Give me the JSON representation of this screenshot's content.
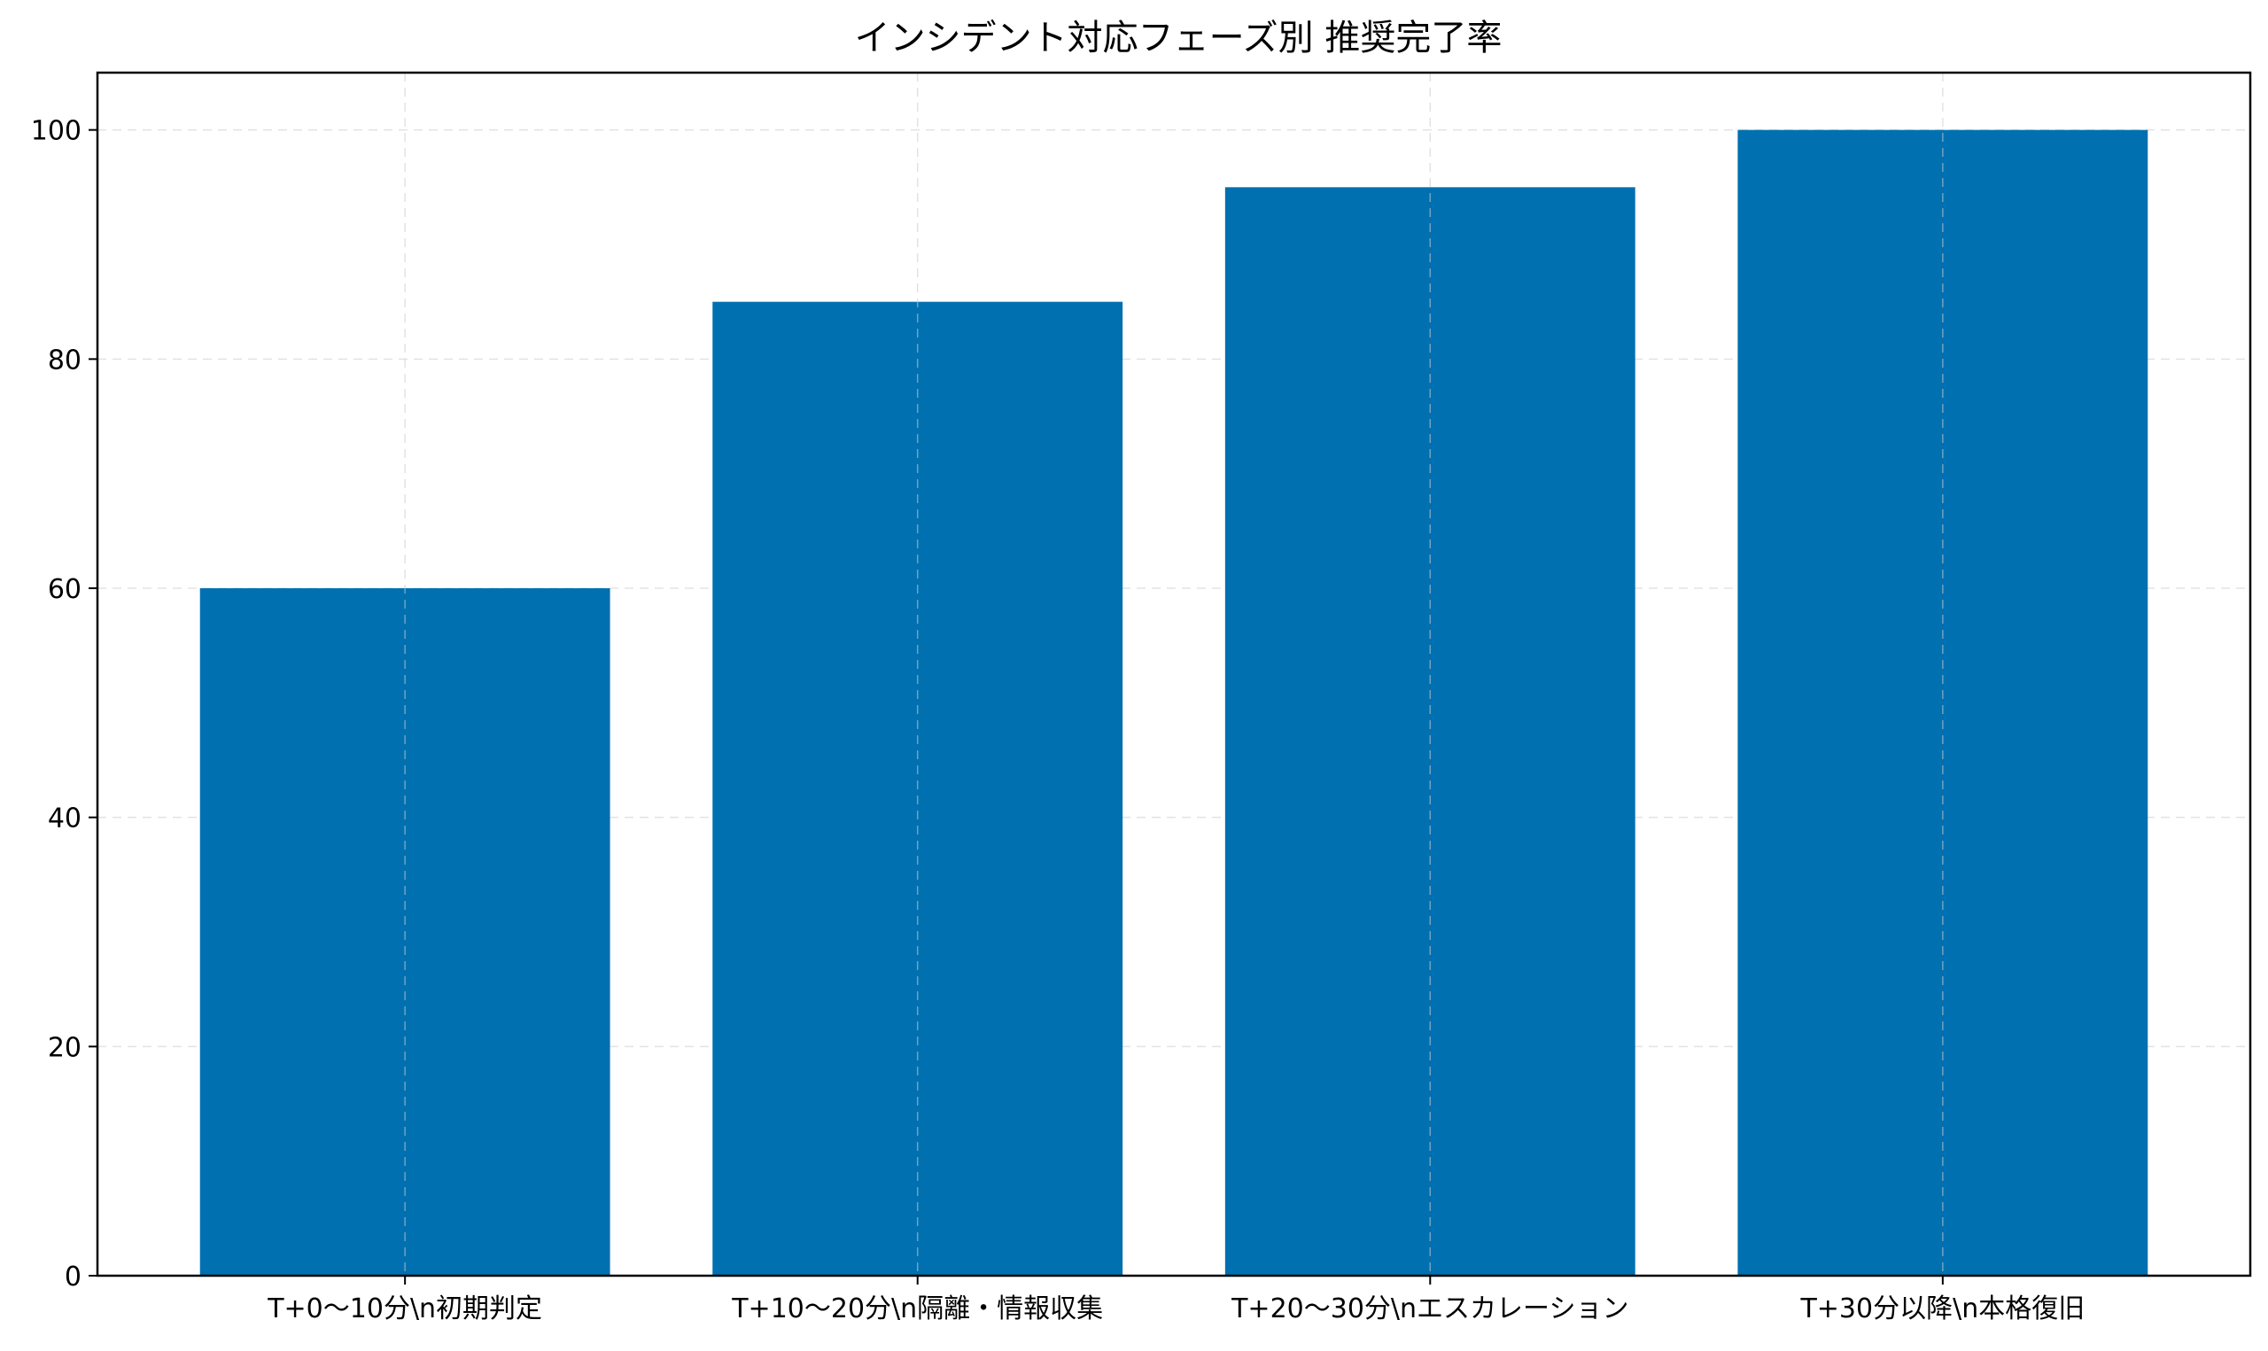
{
  "chart_data": {
    "type": "bar",
    "title": "インシデント対応フェーズ別 推奨完了率",
    "xlabel": "",
    "ylabel": "",
    "categories": [
      "T+0〜10分\\n初期判定",
      "T+10〜20分\\n隔離・情報収集",
      "T+20〜30分\\nエスカレーション",
      "T+30分以降\\n本格復旧"
    ],
    "values": [
      60,
      85,
      95,
      100
    ],
    "ylim": [
      0,
      105
    ],
    "yticks": [
      0,
      20,
      40,
      60,
      80,
      100
    ],
    "grid": true,
    "legend": "none",
    "colors": {
      "bar": "#0070b0",
      "grid": "#cccccc",
      "axis": "#000000"
    }
  }
}
